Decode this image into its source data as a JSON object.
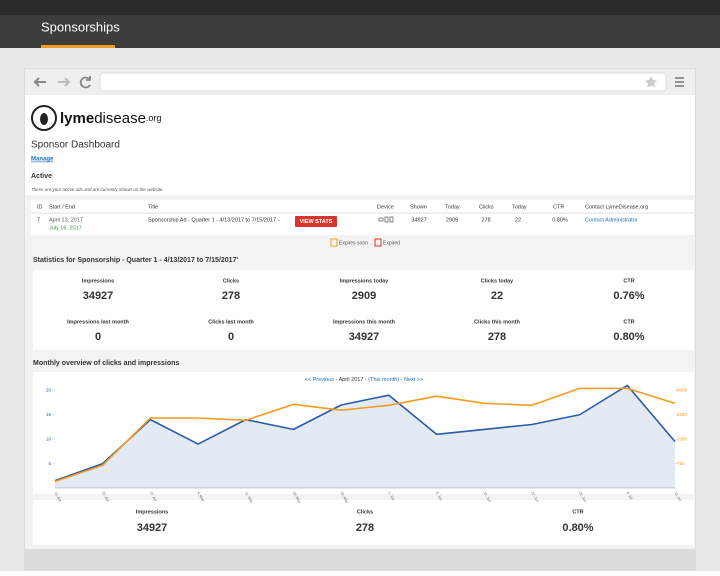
{
  "header": {
    "title": "Sponsorships"
  },
  "logo": {
    "name_bold": "lyme",
    "name_light": "disease",
    "suffix": ".org"
  },
  "dashboard": {
    "title": "Sponsor Dashboard",
    "manage": "Manage",
    "section": "Active",
    "note": "These are your active ads and are currently shown on the website."
  },
  "table": {
    "headers": [
      "ID",
      "Start / End",
      "Title",
      "Device",
      "Shown",
      "Today",
      "Clicks",
      "Today",
      "CTR",
      "Contact LymeDisease.org"
    ],
    "row": {
      "id": 7,
      "start": "April 13, 2017",
      "end": "July 16, 2017",
      "title": "Sponsorship Ad - Quarter 1 - 4/13/2017 to 7/15/2017 -",
      "button": "VIEW STATS",
      "shown": 34927,
      "shown_today": 2909,
      "clicks": 278,
      "clicks_today": 22,
      "ctr": "0.80%",
      "contact": "Contact Administrator"
    }
  },
  "legend": {
    "soon": "Expires soon",
    "expired": "Expired"
  },
  "statistics": {
    "title": "Statistics for  Sponsorship  - Quarter 1 - 4/13/2017 to 7/15/2017'",
    "items": [
      {
        "label": "Impressions",
        "value": "34927"
      },
      {
        "label": "Clicks",
        "value": "278"
      },
      {
        "label": "Impressions today",
        "value": "2909"
      },
      {
        "label": "Clicks today",
        "value": "22"
      },
      {
        "label": "CTR",
        "value": "0.76%"
      },
      {
        "label": "Impressions last month",
        "value": "0"
      },
      {
        "label": "Clicks last month",
        "value": "0"
      },
      {
        "label": "Impressions this month",
        "value": "34927"
      },
      {
        "label": "Clicks this month",
        "value": "278"
      },
      {
        "label": "CTR",
        "value": "0.80%"
      }
    ]
  },
  "overview": {
    "title": "Monthly overview of clicks and impressions",
    "nav": {
      "prev": "<< Previous",
      "month": " - April 2017 - ",
      "this": "(This month)",
      "sep": " - ",
      "next": "Next >>"
    }
  },
  "chart_data": {
    "type": "line",
    "categories": [
      "13. Apr",
      "20. Apr",
      "27. Apr",
      "4. May",
      "11. May",
      "18. May",
      "25. May",
      "1. Jun",
      "8. Jun",
      "15. Jun",
      "22. Jun",
      "29. Jun",
      "6. Jul",
      "13. Jul"
    ],
    "series": [
      {
        "name": "Clicks",
        "color": "#2a5ca8",
        "values": [
          1.5,
          5,
          14,
          9,
          14,
          12,
          17,
          19,
          11,
          12,
          13,
          15,
          21,
          9.5
        ]
      },
      {
        "name": "Impressions",
        "color": "#f39c1f",
        "axis": "y2",
        "values": [
          200,
          700,
          2150,
          2150,
          2080,
          2570,
          2390,
          2540,
          2820,
          2600,
          2540,
          3060,
          3060,
          2600
        ]
      }
    ],
    "ylim": [
      0,
      21.5
    ],
    "yticks": [
      5,
      10,
      15,
      20
    ],
    "y2lim": [
      0,
      3225
    ],
    "y2ticks": [
      750,
      1500,
      2250,
      3000
    ]
  },
  "summary": [
    {
      "label": "Impressions",
      "value": "34927"
    },
    {
      "label": "Clicks",
      "value": "278"
    },
    {
      "label": "CTR",
      "value": "0.80%"
    }
  ]
}
